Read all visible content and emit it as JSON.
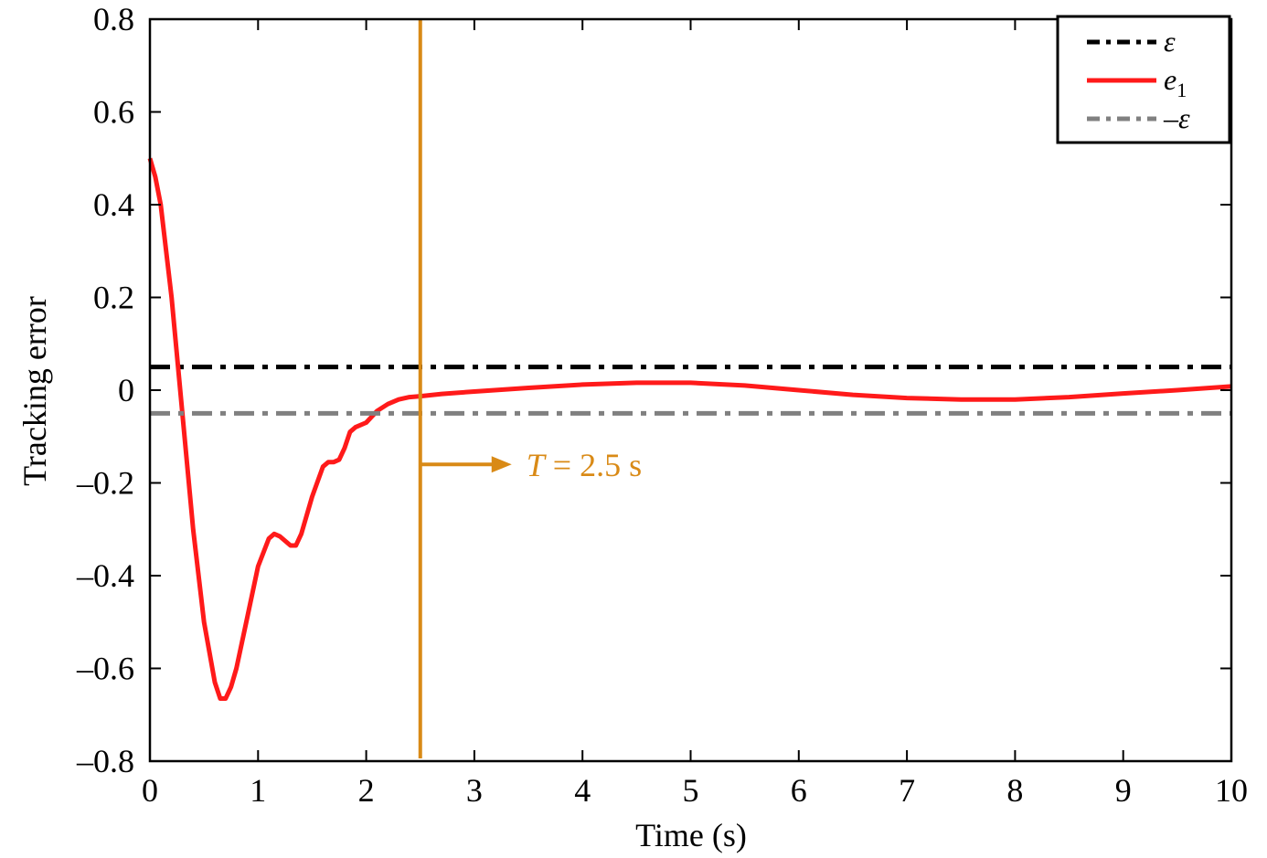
{
  "chart_data": {
    "type": "line",
    "xlabel": "Time (s)",
    "ylabel": "Tracking error",
    "xlim": [
      0,
      10
    ],
    "ylim": [
      -0.8,
      0.8
    ],
    "xticks": [
      0,
      1,
      2,
      3,
      4,
      5,
      6,
      7,
      8,
      9,
      10
    ],
    "xtick_labels": [
      "0",
      "1",
      "2",
      "3",
      "4",
      "5",
      "6",
      "7",
      "8",
      "9",
      "10"
    ],
    "yticks": [
      0.8,
      0.6,
      0.4,
      0.2,
      0,
      -0.2,
      -0.4,
      -0.6,
      -0.8
    ],
    "ytick_labels": [
      "0.8",
      "0.6",
      "0.4",
      "0.2",
      "0",
      "–0.2",
      "–0.4",
      "–0.6",
      "–0.8"
    ],
    "grid": false,
    "legend_position": "top-right",
    "series": [
      {
        "name": "ε",
        "style": "dash-dot",
        "color": "#000000",
        "x": [
          0,
          10
        ],
        "y": [
          0.05,
          0.05
        ]
      },
      {
        "name": "e1",
        "style": "solid",
        "color": "#ff1a1a",
        "x": [
          0,
          0.05,
          0.1,
          0.2,
          0.3,
          0.4,
          0.5,
          0.6,
          0.65,
          0.7,
          0.75,
          0.8,
          0.9,
          1.0,
          1.1,
          1.15,
          1.2,
          1.3,
          1.35,
          1.4,
          1.5,
          1.6,
          1.65,
          1.7,
          1.75,
          1.8,
          1.85,
          1.9,
          2.0,
          2.1,
          2.2,
          2.3,
          2.4,
          2.5,
          2.7,
          3.0,
          3.5,
          4.0,
          4.5,
          5.0,
          5.5,
          6.0,
          6.5,
          7.0,
          7.5,
          7.8,
          8.0,
          8.5,
          9.0,
          9.5,
          10.0
        ],
        "y": [
          0.5,
          0.46,
          0.4,
          0.2,
          -0.05,
          -0.3,
          -0.5,
          -0.63,
          -0.665,
          -0.665,
          -0.64,
          -0.6,
          -0.49,
          -0.38,
          -0.32,
          -0.31,
          -0.315,
          -0.335,
          -0.335,
          -0.31,
          -0.23,
          -0.165,
          -0.155,
          -0.155,
          -0.15,
          -0.125,
          -0.09,
          -0.08,
          -0.07,
          -0.045,
          -0.03,
          -0.02,
          -0.015,
          -0.013,
          -0.008,
          -0.003,
          0.005,
          0.012,
          0.016,
          0.016,
          0.01,
          0.0,
          -0.01,
          -0.017,
          -0.02,
          -0.02,
          -0.02,
          -0.015,
          -0.007,
          0.0,
          0.008
        ]
      },
      {
        "name": "–ε",
        "style": "dash-dot",
        "color": "#808080",
        "x": [
          0,
          10
        ],
        "y": [
          -0.05,
          -0.05
        ]
      }
    ],
    "vertical_line": {
      "x": 2.5,
      "color": "#d98a16"
    },
    "annotation": {
      "text_symbol": "T",
      "text_value": " = 2.5 s",
      "arrow_from_x": 2.5,
      "y": -0.16
    }
  }
}
